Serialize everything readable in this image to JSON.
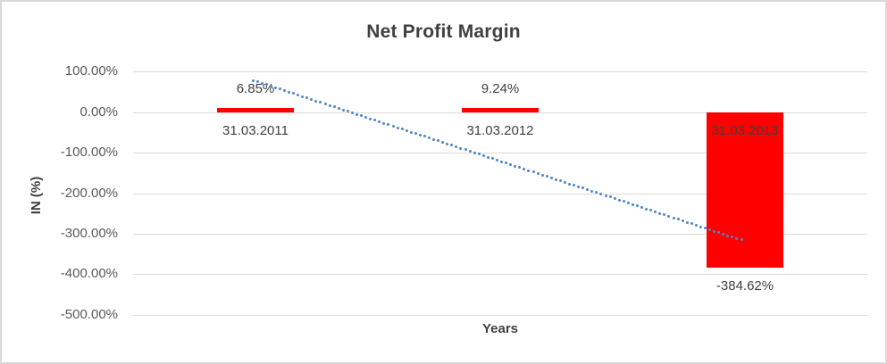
{
  "frame": {
    "background": "#FFFFFF",
    "border_color": "#D9D9D9"
  },
  "chart_data": {
    "type": "bar",
    "title": "Net Profit Margin",
    "xlabel": "Years",
    "ylabel": "IN (%)",
    "categories": [
      "31.03.2011",
      "31.03.2012",
      "31.03.2013"
    ],
    "values": [
      6.85,
      9.24,
      -384.62
    ],
    "data_labels": [
      "6.85%",
      "9.24%",
      "-384.62%"
    ],
    "y_ticks": [
      "100.00%",
      "0.00%",
      "-100.00%",
      "-200.00%",
      "-300.00%",
      "-400.00%",
      "-500.00%"
    ],
    "y_tick_values": [
      100,
      0,
      -100,
      -200,
      -300,
      -400,
      -500
    ],
    "ylim": [
      -500,
      100
    ],
    "grid": true,
    "legend_position": "none",
    "bar_color": "#FF0000",
    "gridline_color": "#D9D9D9",
    "trendline": {
      "type": "linear",
      "style": "dotted",
      "color": "#4E86C6",
      "start_value_pct": 78.6,
      "end_value_pct": -315.6
    }
  },
  "text_colors": {
    "title": "#404040",
    "axis_ticks": "#595959",
    "labels": "#404040"
  }
}
